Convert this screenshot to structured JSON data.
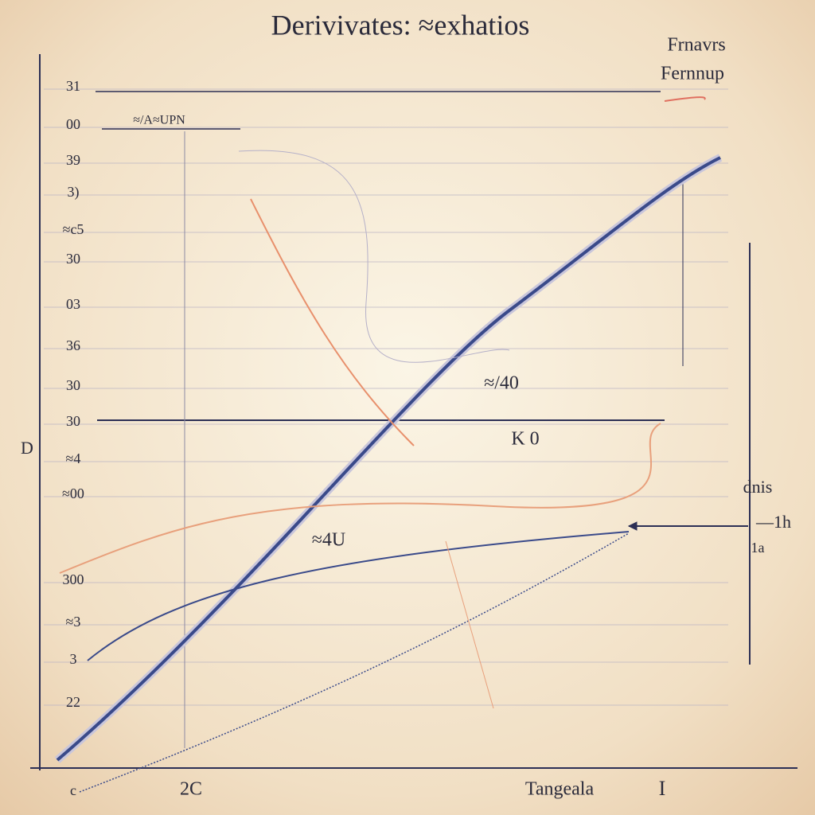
{
  "title": "Derivivates: ≈exhatios",
  "legend": [
    "Frnavrs",
    "Fernnup"
  ],
  "side_label": "D",
  "y_labels": [
    "31",
    "00",
    "39",
    "3)",
    "≈c5",
    "30",
    "03",
    "36",
    "30",
    "30",
    "≈4",
    "≈00",
    "300",
    "≈3",
    "3",
    "22"
  ],
  "x_labels": [
    "c",
    "2C",
    "Tangeala",
    "I"
  ],
  "annotations": [
    "≈/40",
    "K 0",
    "≈4U",
    "≈/A≈UPN"
  ],
  "right_labels": [
    "dnis",
    "—1h",
    "1a"
  ]
}
